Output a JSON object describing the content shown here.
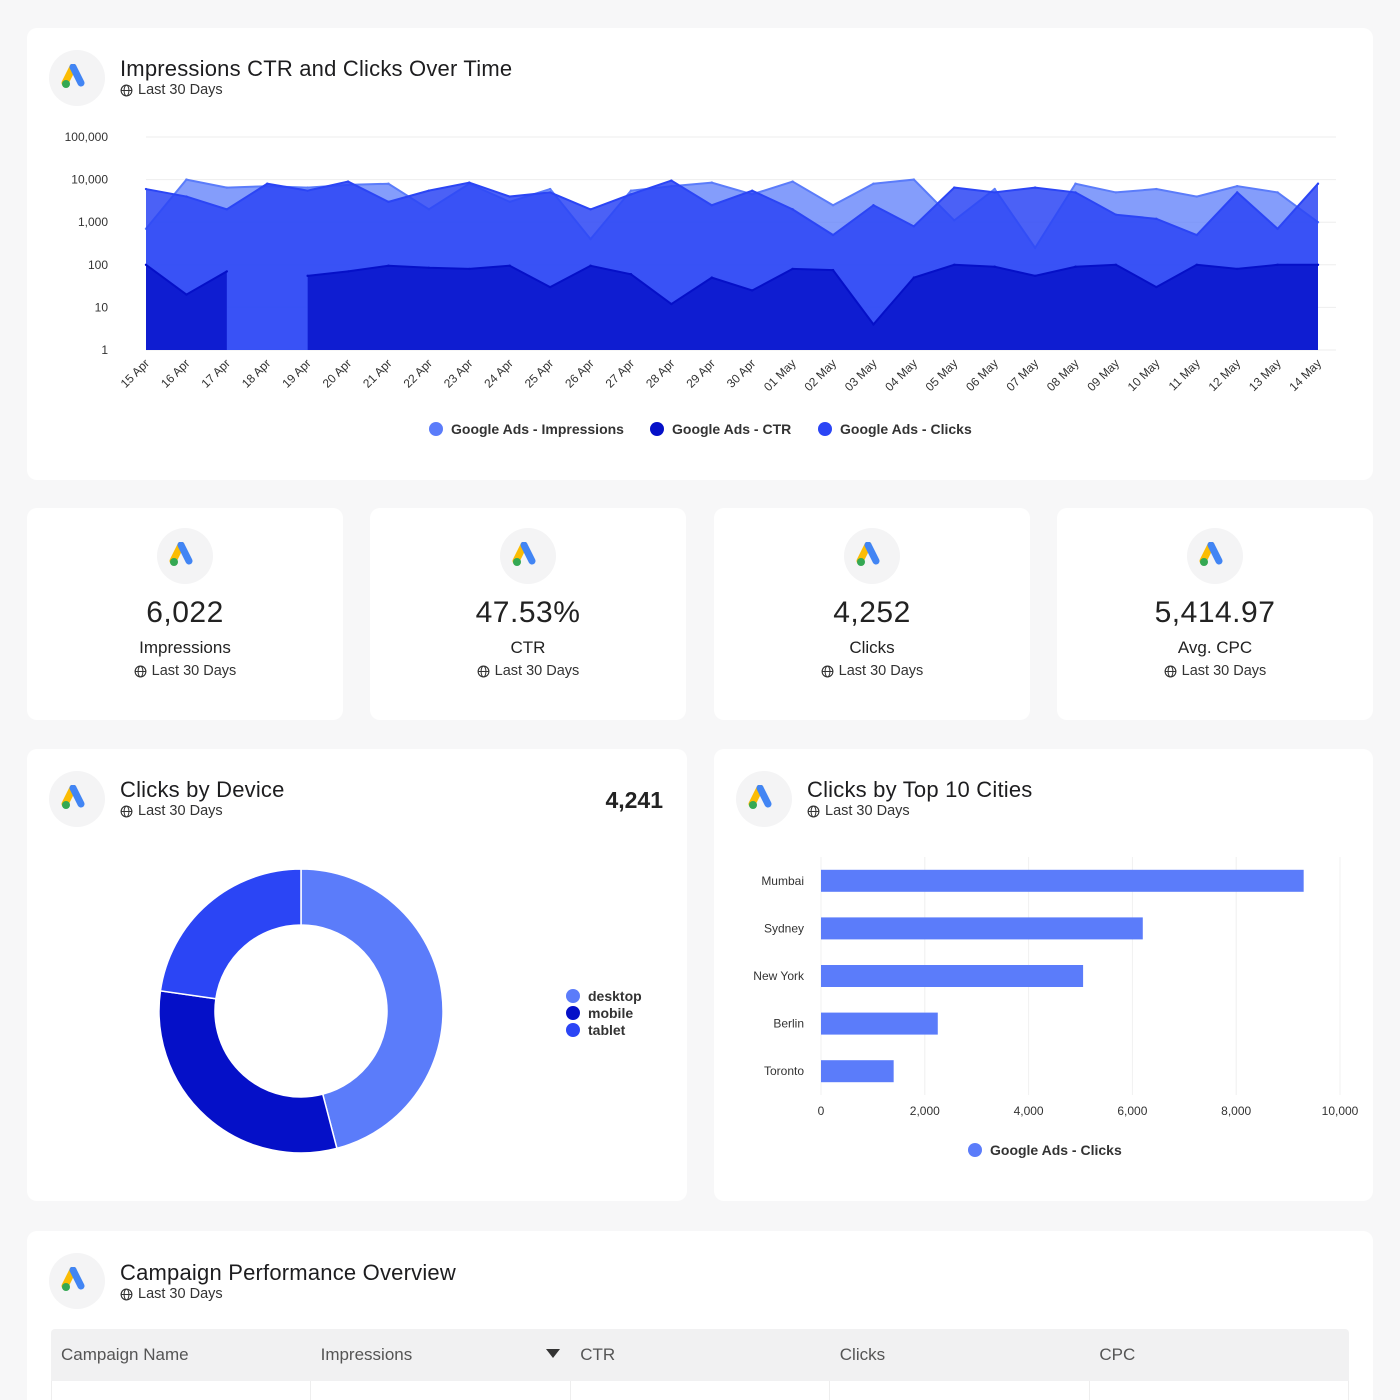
{
  "colors": {
    "impressions": "#5b7cfa",
    "ctr": "#0510c8",
    "clicks": "#2b45f5",
    "page_bg": "#f7f7f8"
  },
  "icons": {
    "logo": "google-ads-logo",
    "globe": "globe-icon",
    "sort": "sort-desc-icon"
  },
  "timeseries_card": {
    "title": "Impressions CTR and Clicks Over Time",
    "subtitle": "Last 30 Days"
  },
  "kpis": [
    {
      "value": "6,022",
      "label": "Impressions",
      "subtitle": "Last 30 Days"
    },
    {
      "value": "47.53%",
      "label": "CTR",
      "subtitle": "Last 30 Days"
    },
    {
      "value": "4,252",
      "label": "Clicks",
      "subtitle": "Last 30 Days"
    },
    {
      "value": "5,414.97",
      "label": "Avg. CPC",
      "subtitle": "Last 30 Days"
    }
  ],
  "device_card": {
    "title": "Clicks by Device",
    "subtitle": "Last 30 Days",
    "total": "4,241"
  },
  "cities_card": {
    "title": "Clicks by Top 10 Cities",
    "subtitle": "Last 30 Days"
  },
  "campaign_card": {
    "title": "Campaign Performance Overview",
    "subtitle": "Last 30 Days",
    "columns": [
      "Campaign Name",
      "Impressions",
      "CTR",
      "Clicks",
      "CPC"
    ]
  },
  "chart_data": [
    {
      "type": "area",
      "yscale": "log",
      "ylim": [
        1,
        100000
      ],
      "yticks": [
        "1",
        "10",
        "100",
        "1,000",
        "10,000",
        "100,000"
      ],
      "grid": true,
      "legend": "bottom-center",
      "categories": [
        "15 Apr",
        "16 Apr",
        "17 Apr",
        "18 Apr",
        "19 Apr",
        "20 Apr",
        "21 Apr",
        "22 Apr",
        "23 Apr",
        "24 Apr",
        "25 Apr",
        "26 Apr",
        "27 Apr",
        "28 Apr",
        "29 Apr",
        "30 Apr",
        "01 May",
        "02 May",
        "03 May",
        "04 May",
        "05 May",
        "06 May",
        "07 May",
        "08 May",
        "09 May",
        "10 May",
        "11 May",
        "12 May",
        "13 May",
        "14 May"
      ],
      "series": [
        {
          "name": "Google Ads - Impressions",
          "color": "#5b7cfa",
          "values": [
            700,
            10000,
            6500,
            7000,
            6500,
            7500,
            8000,
            2000,
            8000,
            3000,
            6000,
            400,
            5500,
            7000,
            8500,
            4500,
            9000,
            2500,
            8000,
            10000,
            1100,
            6000,
            250,
            8000,
            5000,
            6000,
            4000,
            7000,
            5000,
            1000
          ]
        },
        {
          "name": "Google Ads - CTR",
          "color": "#0510c8",
          "values": [
            100,
            20,
            70,
            null,
            55,
            70,
            95,
            85,
            80,
            95,
            30,
            95,
            60,
            12,
            50,
            25,
            80,
            75,
            4,
            50,
            100,
            90,
            55,
            90,
            100,
            30,
            100,
            80,
            100,
            100
          ]
        },
        {
          "name": "Google Ads - Clicks",
          "color": "#2b45f5",
          "values": [
            6000,
            4000,
            2000,
            8000,
            5500,
            9000,
            3000,
            5500,
            8500,
            4000,
            5000,
            2000,
            4500,
            9500,
            2500,
            5500,
            2000,
            500,
            2500,
            800,
            6500,
            5000,
            6500,
            5000,
            1500,
            1200,
            500,
            5000,
            700,
            8000
          ]
        }
      ]
    },
    {
      "type": "pie",
      "donut": true,
      "legend": "right",
      "categories": [
        "desktop",
        "mobile",
        "tablet"
      ],
      "values": [
        1948,
        1329,
        964
      ],
      "colors": [
        "#5b7cfa",
        "#0510c8",
        "#2b45f5"
      ]
    },
    {
      "type": "bar",
      "orientation": "horizontal",
      "categories": [
        "Mumbai",
        "Sydney",
        "New York",
        "Berlin",
        "Toronto"
      ],
      "series": [
        {
          "name": "Google Ads - Clicks",
          "color": "#5b7cfa",
          "values": [
            9300,
            6200,
            5050,
            2250,
            1400
          ]
        }
      ],
      "xlim": [
        0,
        10000
      ],
      "xticks": [
        "0",
        "2,000",
        "4,000",
        "6,000",
        "8,000",
        "10,000"
      ],
      "grid": true,
      "legend": "bottom-center"
    }
  ]
}
